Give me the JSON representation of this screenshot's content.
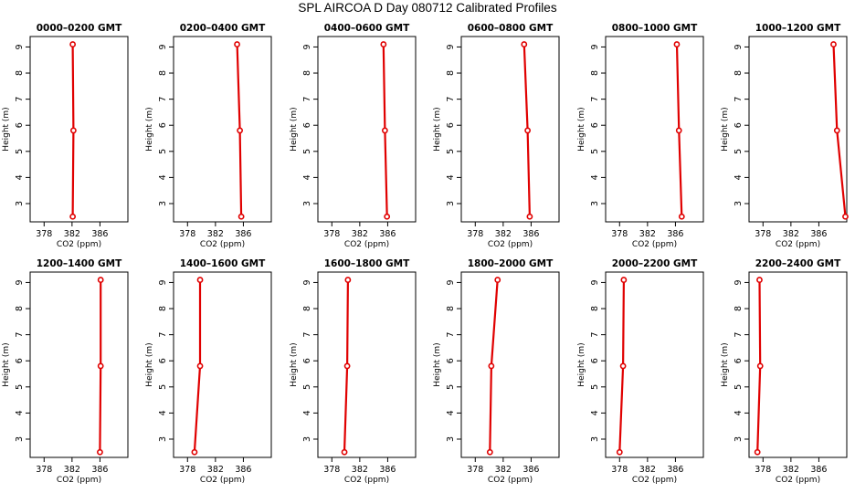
{
  "title": "SPL AIRCOA D  Day 080712  Calibrated Profiles",
  "chart_data": {
    "type": "line",
    "series_color": "#e00000",
    "grid": false,
    "xlabel": "CO2 (ppm)",
    "ylabel": "Height (m)",
    "xlim": [
      376,
      390
    ],
    "ylim": [
      2.3,
      9.4
    ],
    "xticks": [
      378,
      382,
      386
    ],
    "yticks": [
      3,
      4,
      5,
      6,
      7,
      8,
      9
    ],
    "panels": [
      {
        "title": "0000–0200 GMT",
        "points": [
          {
            "x": 382.1,
            "y": 2.5
          },
          {
            "x": 382.2,
            "y": 5.8
          },
          {
            "x": 382.1,
            "y": 9.1
          }
        ]
      },
      {
        "title": "0200–0400 GMT",
        "points": [
          {
            "x": 385.7,
            "y": 2.5
          },
          {
            "x": 385.5,
            "y": 5.8
          },
          {
            "x": 385.1,
            "y": 9.1
          }
        ]
      },
      {
        "title": "0400–0600 GMT",
        "points": [
          {
            "x": 385.9,
            "y": 2.5
          },
          {
            "x": 385.6,
            "y": 5.8
          },
          {
            "x": 385.4,
            "y": 9.1
          }
        ]
      },
      {
        "title": "0600–0800 GMT",
        "points": [
          {
            "x": 385.8,
            "y": 2.5
          },
          {
            "x": 385.5,
            "y": 5.8
          },
          {
            "x": 385.0,
            "y": 9.1
          }
        ]
      },
      {
        "title": "0800–1000 GMT",
        "points": [
          {
            "x": 386.9,
            "y": 2.5
          },
          {
            "x": 386.5,
            "y": 5.8
          },
          {
            "x": 386.2,
            "y": 9.1
          }
        ]
      },
      {
        "title": "1000–1200 GMT",
        "points": [
          {
            "x": 389.8,
            "y": 2.5
          },
          {
            "x": 388.6,
            "y": 5.8
          },
          {
            "x": 388.1,
            "y": 9.1
          }
        ]
      },
      {
        "title": "1200–1400 GMT",
        "points": [
          {
            "x": 386.0,
            "y": 2.5
          },
          {
            "x": 386.1,
            "y": 5.8
          },
          {
            "x": 386.1,
            "y": 9.1
          }
        ]
      },
      {
        "title": "1400–1600 GMT",
        "points": [
          {
            "x": 379.0,
            "y": 2.5
          },
          {
            "x": 379.8,
            "y": 5.8
          },
          {
            "x": 379.8,
            "y": 9.1
          }
        ]
      },
      {
        "title": "1600–1800 GMT",
        "points": [
          {
            "x": 379.8,
            "y": 2.5
          },
          {
            "x": 380.2,
            "y": 5.8
          },
          {
            "x": 380.3,
            "y": 9.1
          }
        ]
      },
      {
        "title": "1800–2000 GMT",
        "points": [
          {
            "x": 380.1,
            "y": 2.5
          },
          {
            "x": 380.3,
            "y": 5.8
          },
          {
            "x": 381.2,
            "y": 9.1
          }
        ]
      },
      {
        "title": "2000–2200 GMT",
        "points": [
          {
            "x": 378.0,
            "y": 2.5
          },
          {
            "x": 378.5,
            "y": 5.8
          },
          {
            "x": 378.6,
            "y": 9.1
          }
        ]
      },
      {
        "title": "2200–2400 GMT",
        "points": [
          {
            "x": 377.2,
            "y": 2.5
          },
          {
            "x": 377.6,
            "y": 5.8
          },
          {
            "x": 377.5,
            "y": 9.1
          }
        ]
      }
    ]
  }
}
